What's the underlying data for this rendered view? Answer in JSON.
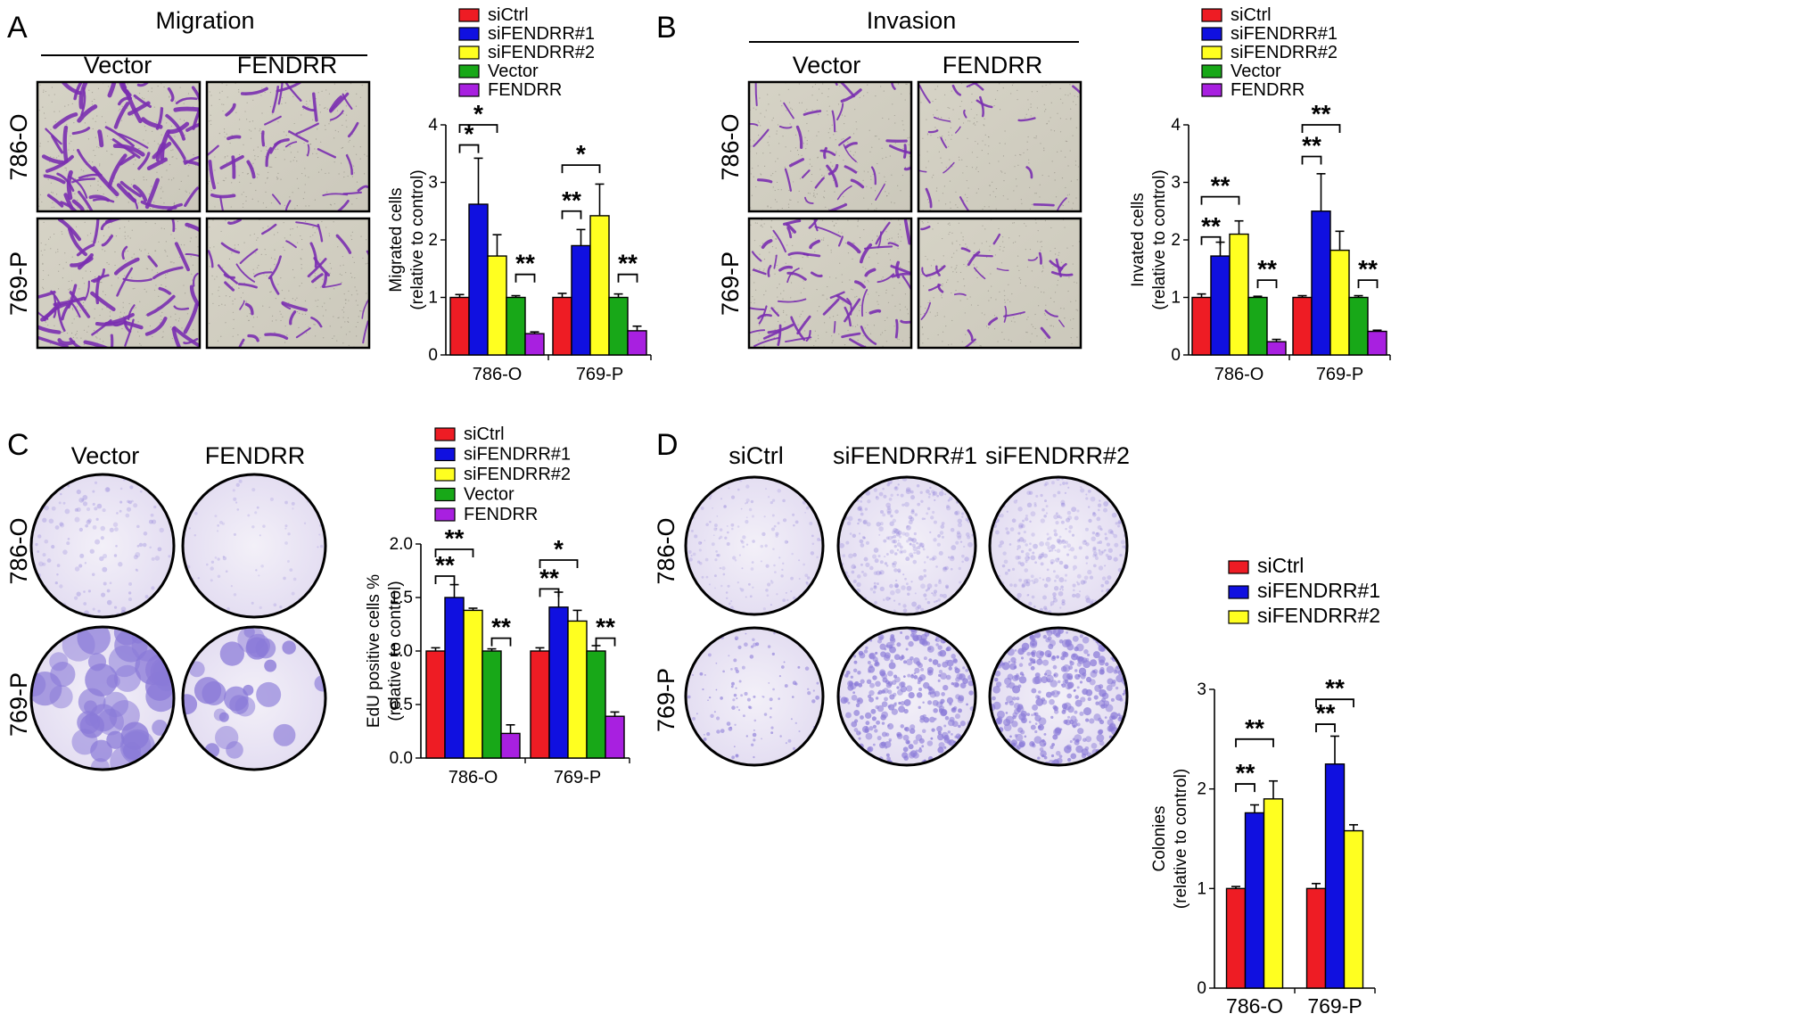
{
  "panels": {
    "A": {
      "label": "A",
      "section_title": "Migration",
      "col_labels": [
        "Vector",
        "FENDRR"
      ],
      "row_labels": [
        "786-O",
        "769-P"
      ]
    },
    "B": {
      "label": "B",
      "section_title": "Invasion",
      "col_labels": [
        "Vector",
        "FENDRR"
      ],
      "row_labels": [
        "786-O",
        "769-P"
      ]
    },
    "C": {
      "label": "C",
      "col_labels": [
        "Vector",
        "FENDRR"
      ],
      "row_labels": [
        "786-O",
        "769-P"
      ]
    },
    "D": {
      "label": "D",
      "col_labels": [
        "siCtrl",
        "siFENDRR#1",
        "siFENDRR#2"
      ],
      "row_labels": [
        "786-O",
        "769-P"
      ]
    }
  },
  "colors": {
    "siCtrl": "#ee1c24",
    "siFENDRR#1": "#1010e0",
    "siFENDRR#2": "#ffff20",
    "Vector": "#18a818",
    "FENDRR": "#a820e0",
    "stain": "#7a2fb0",
    "dish_stain": "#8a7ad8"
  },
  "chart_data": [
    {
      "id": "A",
      "type": "bar",
      "ylabel": [
        "Migrated cells",
        "(relative to control)"
      ],
      "ylim": [
        0,
        4
      ],
      "yticks": [
        "0",
        "1",
        "2",
        "3",
        "4"
      ],
      "categories": [
        "786-O",
        "769-P"
      ],
      "legend": [
        "siCtrl",
        "siFENDRR#1",
        "siFENDRR#2",
        "Vector",
        "FENDRR"
      ],
      "series": [
        {
          "name": "siCtrl",
          "values": [
            1.0,
            1.0
          ],
          "errors": [
            0.05,
            0.07
          ]
        },
        {
          "name": "siFENDRR#1",
          "values": [
            2.62,
            1.9
          ],
          "errors": [
            0.8,
            0.28
          ]
        },
        {
          "name": "siFENDRR#2",
          "values": [
            1.72,
            2.42
          ],
          "errors": [
            0.37,
            0.55
          ]
        },
        {
          "name": "Vector",
          "values": [
            1.0,
            1.0
          ],
          "errors": [
            0.03,
            0.06
          ]
        },
        {
          "name": "FENDRR",
          "values": [
            0.37,
            0.42
          ],
          "errors": [
            0.03,
            0.08
          ]
        }
      ],
      "annotations": [
        {
          "cat": 0,
          "from": 0,
          "to": 1,
          "y": 3.65,
          "text": "*"
        },
        {
          "cat": 0,
          "from": 0,
          "to": 2,
          "y": 4.0,
          "text": "*"
        },
        {
          "cat": 0,
          "from": 3,
          "to": 4,
          "y": 1.4,
          "text": "**"
        },
        {
          "cat": 1,
          "from": 0,
          "to": 1,
          "y": 2.5,
          "text": "**"
        },
        {
          "cat": 1,
          "from": 0,
          "to": 2,
          "y": 3.3,
          "text": "*"
        },
        {
          "cat": 1,
          "from": 3,
          "to": 4,
          "y": 1.4,
          "text": "**"
        }
      ]
    },
    {
      "id": "B",
      "type": "bar",
      "ylabel": [
        "Invated cells",
        "(relative to control)"
      ],
      "ylim": [
        0,
        4
      ],
      "yticks": [
        "0",
        "1",
        "2",
        "3",
        "4"
      ],
      "categories": [
        "786-O",
        "769-P"
      ],
      "legend": [
        "siCtrl",
        "siFENDRR#1",
        "siFENDRR#2",
        "Vector",
        "FENDRR"
      ],
      "series": [
        {
          "name": "siCtrl",
          "values": [
            1.0,
            1.0
          ],
          "errors": [
            0.06,
            0.03
          ]
        },
        {
          "name": "siFENDRR#1",
          "values": [
            1.72,
            2.5
          ],
          "errors": [
            0.24,
            0.65
          ]
        },
        {
          "name": "siFENDRR#2",
          "values": [
            2.1,
            1.82
          ],
          "errors": [
            0.23,
            0.33
          ]
        },
        {
          "name": "Vector",
          "values": [
            1.0,
            1.0
          ],
          "errors": [
            0.02,
            0.03
          ]
        },
        {
          "name": "FENDRR",
          "values": [
            0.23,
            0.41
          ],
          "errors": [
            0.04,
            0.02
          ]
        }
      ],
      "annotations": [
        {
          "cat": 0,
          "from": 0,
          "to": 1,
          "y": 2.05,
          "text": "**"
        },
        {
          "cat": 0,
          "from": 0,
          "to": 2,
          "y": 2.75,
          "text": "**"
        },
        {
          "cat": 0,
          "from": 3,
          "to": 4,
          "y": 1.3,
          "text": "**"
        },
        {
          "cat": 1,
          "from": 0,
          "to": 1,
          "y": 3.45,
          "text": "**"
        },
        {
          "cat": 1,
          "from": 0,
          "to": 2,
          "y": 4.0,
          "text": "**"
        },
        {
          "cat": 1,
          "from": 3,
          "to": 4,
          "y": 1.3,
          "text": "**"
        }
      ]
    },
    {
      "id": "C",
      "type": "bar",
      "ylabel": [
        "EdU positive cells %",
        "(relative to control)"
      ],
      "ylim": [
        0,
        2
      ],
      "yticks": [
        "0.0",
        "0.5",
        "1.0",
        "1.5",
        "2.0"
      ],
      "categories": [
        "786-O",
        "769-P"
      ],
      "legend": [
        "siCtrl",
        "siFENDRR#1",
        "siFENDRR#2",
        "Vector",
        "FENDRR"
      ],
      "series": [
        {
          "name": "siCtrl",
          "values": [
            1.0,
            1.0
          ],
          "errors": [
            0.03,
            0.03
          ]
        },
        {
          "name": "siFENDRR#1",
          "values": [
            1.5,
            1.41
          ],
          "errors": [
            0.12,
            0.14
          ]
        },
        {
          "name": "siFENDRR#2",
          "values": [
            1.38,
            1.28
          ],
          "errors": [
            0.02,
            0.1
          ]
        },
        {
          "name": "Vector",
          "values": [
            1.0,
            1.0
          ],
          "errors": [
            0.02,
            0.05
          ]
        },
        {
          "name": "FENDRR",
          "values": [
            0.23,
            0.39
          ],
          "errors": [
            0.08,
            0.04
          ]
        }
      ],
      "annotations": [
        {
          "cat": 0,
          "from": 0,
          "to": 1,
          "y": 1.7,
          "text": "**"
        },
        {
          "cat": 0,
          "from": 0,
          "to": 2,
          "y": 1.95,
          "text": "**"
        },
        {
          "cat": 0,
          "from": 3,
          "to": 4,
          "y": 1.12,
          "text": "**"
        },
        {
          "cat": 1,
          "from": 0,
          "to": 1,
          "y": 1.58,
          "text": "**"
        },
        {
          "cat": 1,
          "from": 0,
          "to": 2,
          "y": 1.85,
          "text": "*"
        },
        {
          "cat": 1,
          "from": 3,
          "to": 4,
          "y": 1.12,
          "text": "**"
        }
      ]
    },
    {
      "id": "D",
      "type": "bar",
      "ylabel": [
        "Colonies",
        "(relative to control)"
      ],
      "ylim": [
        0,
        3
      ],
      "yticks": [
        "0",
        "1",
        "2",
        "3"
      ],
      "categories": [
        "786-O",
        "769-P"
      ],
      "legend": [
        "siCtrl",
        "siFENDRR#1",
        "siFENDRR#2"
      ],
      "series": [
        {
          "name": "siCtrl",
          "values": [
            1.0,
            1.0
          ],
          "errors": [
            0.02,
            0.05
          ]
        },
        {
          "name": "siFENDRR#1",
          "values": [
            1.76,
            2.25
          ],
          "errors": [
            0.08,
            0.28
          ]
        },
        {
          "name": "siFENDRR#2",
          "values": [
            1.9,
            1.58
          ],
          "errors": [
            0.18,
            0.06
          ]
        }
      ],
      "annotations": [
        {
          "cat": 0,
          "from": 0,
          "to": 1,
          "y": 2.05,
          "text": "**"
        },
        {
          "cat": 0,
          "from": 0,
          "to": 2,
          "y": 2.5,
          "text": "**"
        },
        {
          "cat": 1,
          "from": 0,
          "to": 1,
          "y": 2.65,
          "text": "**"
        },
        {
          "cat": 1,
          "from": 0,
          "to": 2,
          "y": 2.9,
          "text": "**"
        }
      ]
    }
  ]
}
